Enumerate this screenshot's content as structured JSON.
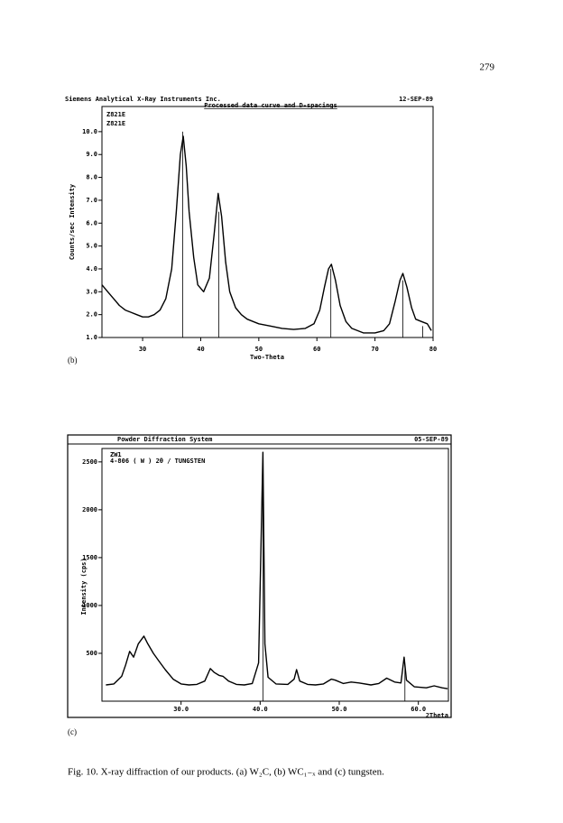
{
  "page_number": "279",
  "caption": "Fig. 10. X-ray diffraction of our products. (a) W₂C, (b) WC₁₋ₓ and (c) tungsten.",
  "chart_data": [
    {
      "type": "line",
      "panel": "(b)",
      "title": "Siemens Analytical X-Ray Instruments Inc.",
      "date": "12-SEP-89",
      "subtitle": "Processed data curve and D-spacings",
      "legend": [
        "Z821E",
        "Z821E"
      ],
      "x_label": "Two-Theta",
      "y_label": "Counts/sec Intensity",
      "xlim": [
        23,
        80
      ],
      "ylim": [
        1,
        11.1
      ],
      "xticks": [
        30,
        40,
        50,
        60,
        70,
        80
      ],
      "yticks": [
        {
          "value": 1,
          "label": "1.0"
        },
        {
          "value": 2,
          "label": "2.0"
        },
        {
          "value": 3,
          "label": "3.0"
        },
        {
          "value": 4,
          "label": "4.0"
        },
        {
          "value": 5,
          "label": "5.0"
        },
        {
          "value": 6,
          "label": "6.0"
        },
        {
          "value": 7,
          "label": "7.0"
        },
        {
          "value": 8,
          "label": "8.0"
        },
        {
          "value": 9,
          "label": "9.0"
        },
        {
          "value": 10,
          "label": "10.0"
        }
      ],
      "x": [
        23,
        24,
        25,
        26,
        27,
        28,
        29,
        30,
        31,
        32,
        33,
        34,
        35,
        35.8,
        36.5,
        37,
        37.5,
        38,
        38.8,
        39.5,
        40.5,
        41.5,
        42.3,
        43,
        43.6,
        44.3,
        45,
        46,
        47,
        48,
        50,
        52,
        54,
        56,
        58,
        59.5,
        60.5,
        61.3,
        62,
        62.5,
        63.2,
        64,
        65,
        66,
        68,
        70,
        71.5,
        72.5,
        73.5,
        74.3,
        74.8,
        75.5,
        76.3,
        77,
        78,
        79,
        79.7
      ],
      "series": [
        {
          "color": "#000000",
          "values": [
            3.3,
            3.0,
            2.7,
            2.4,
            2.2,
            2.1,
            2.0,
            1.9,
            1.9,
            2.0,
            2.2,
            2.7,
            4.0,
            6.5,
            9.0,
            9.8,
            8.5,
            6.5,
            4.5,
            3.3,
            3.0,
            3.6,
            5.5,
            7.3,
            6.3,
            4.3,
            3.0,
            2.3,
            2.0,
            1.8,
            1.6,
            1.5,
            1.4,
            1.35,
            1.4,
            1.6,
            2.2,
            3.2,
            4.0,
            4.2,
            3.5,
            2.4,
            1.7,
            1.4,
            1.2,
            1.2,
            1.3,
            1.6,
            2.6,
            3.5,
            3.8,
            3.2,
            2.3,
            1.8,
            1.7,
            1.6,
            1.3
          ]
        }
      ],
      "sticks": {
        "x": [
          36.9,
          43.1,
          62.4,
          74.8,
          78.2
        ],
        "values": [
          10.0,
          6.5,
          4.0,
          3.5,
          1.5
        ]
      }
    },
    {
      "type": "line",
      "panel": "(c)",
      "title": "Powder Diffraction System",
      "date": "05-SEP-89",
      "legend": [
        "ZW1",
        "4-806 ( W ) 2θ / TUNGSTEN"
      ],
      "x_label": "2Theta",
      "y_label": "Intensity (cps)",
      "xlim": [
        20,
        63.8
      ],
      "ylim": [
        0,
        2640
      ],
      "xticks": [
        {
          "value": 30,
          "label": "30.0"
        },
        {
          "value": 40,
          "label": "40.0"
        },
        {
          "value": 50,
          "label": "50.0"
        },
        {
          "value": 60,
          "label": "60.0"
        }
      ],
      "yticks": [
        500,
        1000,
        1500,
        2000,
        2500
      ],
      "x": [
        20.5,
        21.5,
        22.5,
        23,
        23.5,
        24,
        24.6,
        25.3,
        25.8,
        26.5,
        27.2,
        28,
        29,
        30,
        31,
        32,
        33,
        33.7,
        34.2,
        34.8,
        35.3,
        36,
        37,
        38,
        39,
        39.8,
        40.2,
        40.35,
        40.6,
        41,
        42,
        43.5,
        44.3,
        44.6,
        45,
        46,
        47,
        48,
        49,
        49.5,
        50.5,
        51.5,
        52.5,
        54,
        55,
        56,
        57,
        57.8,
        58.2,
        58.5,
        59.5,
        61,
        62,
        63,
        63.7
      ],
      "series": [
        {
          "color": "#000000",
          "values": [
            170,
            180,
            260,
            380,
            520,
            460,
            600,
            680,
            600,
            500,
            420,
            330,
            230,
            180,
            170,
            175,
            210,
            340,
            300,
            270,
            260,
            210,
            175,
            170,
            185,
            400,
            2000,
            2600,
            600,
            250,
            180,
            175,
            230,
            330,
            210,
            175,
            170,
            180,
            230,
            220,
            185,
            200,
            190,
            170,
            185,
            240,
            200,
            190,
            460,
            220,
            150,
            140,
            160,
            140,
            130
          ]
        }
      ],
      "sticks": {
        "x": [
          40.35,
          58.3
        ],
        "values": [
          2600,
          380
        ]
      }
    }
  ]
}
